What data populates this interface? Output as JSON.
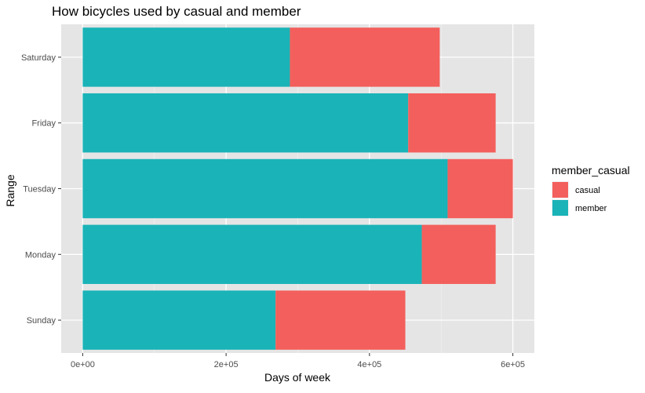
{
  "chart_data": {
    "type": "bar",
    "orientation": "horizontal",
    "stacked": true,
    "title": "How bicycles used by casual and member",
    "xlabel": "Days of week",
    "ylabel": "Range",
    "categories": [
      "Sunday",
      "Monday",
      "Tuesday",
      "Friday",
      "Saturday"
    ],
    "series": [
      {
        "name": "member",
        "color": "#1AB3B8",
        "values": [
          269000,
          473000,
          509000,
          454000,
          289000
        ]
      },
      {
        "name": "casual",
        "color": "#F35F5C",
        "values": [
          181000,
          103000,
          91000,
          122000,
          209000
        ]
      }
    ],
    "xlim": [
      -30000,
      630000
    ],
    "xticks": [
      {
        "value": 0,
        "label": "0e+00"
      },
      {
        "value": 200000,
        "label": "2e+05"
      },
      {
        "value": 400000,
        "label": "4e+05"
      },
      {
        "value": 600000,
        "label": "6e+05"
      }
    ],
    "legend": {
      "title": "member_casual",
      "position": "right",
      "items": [
        {
          "label": "casual",
          "color": "#F35F5C"
        },
        {
          "label": "member",
          "color": "#1AB3B8"
        }
      ]
    },
    "grid": true,
    "panel_background": "#E5E5E5"
  }
}
